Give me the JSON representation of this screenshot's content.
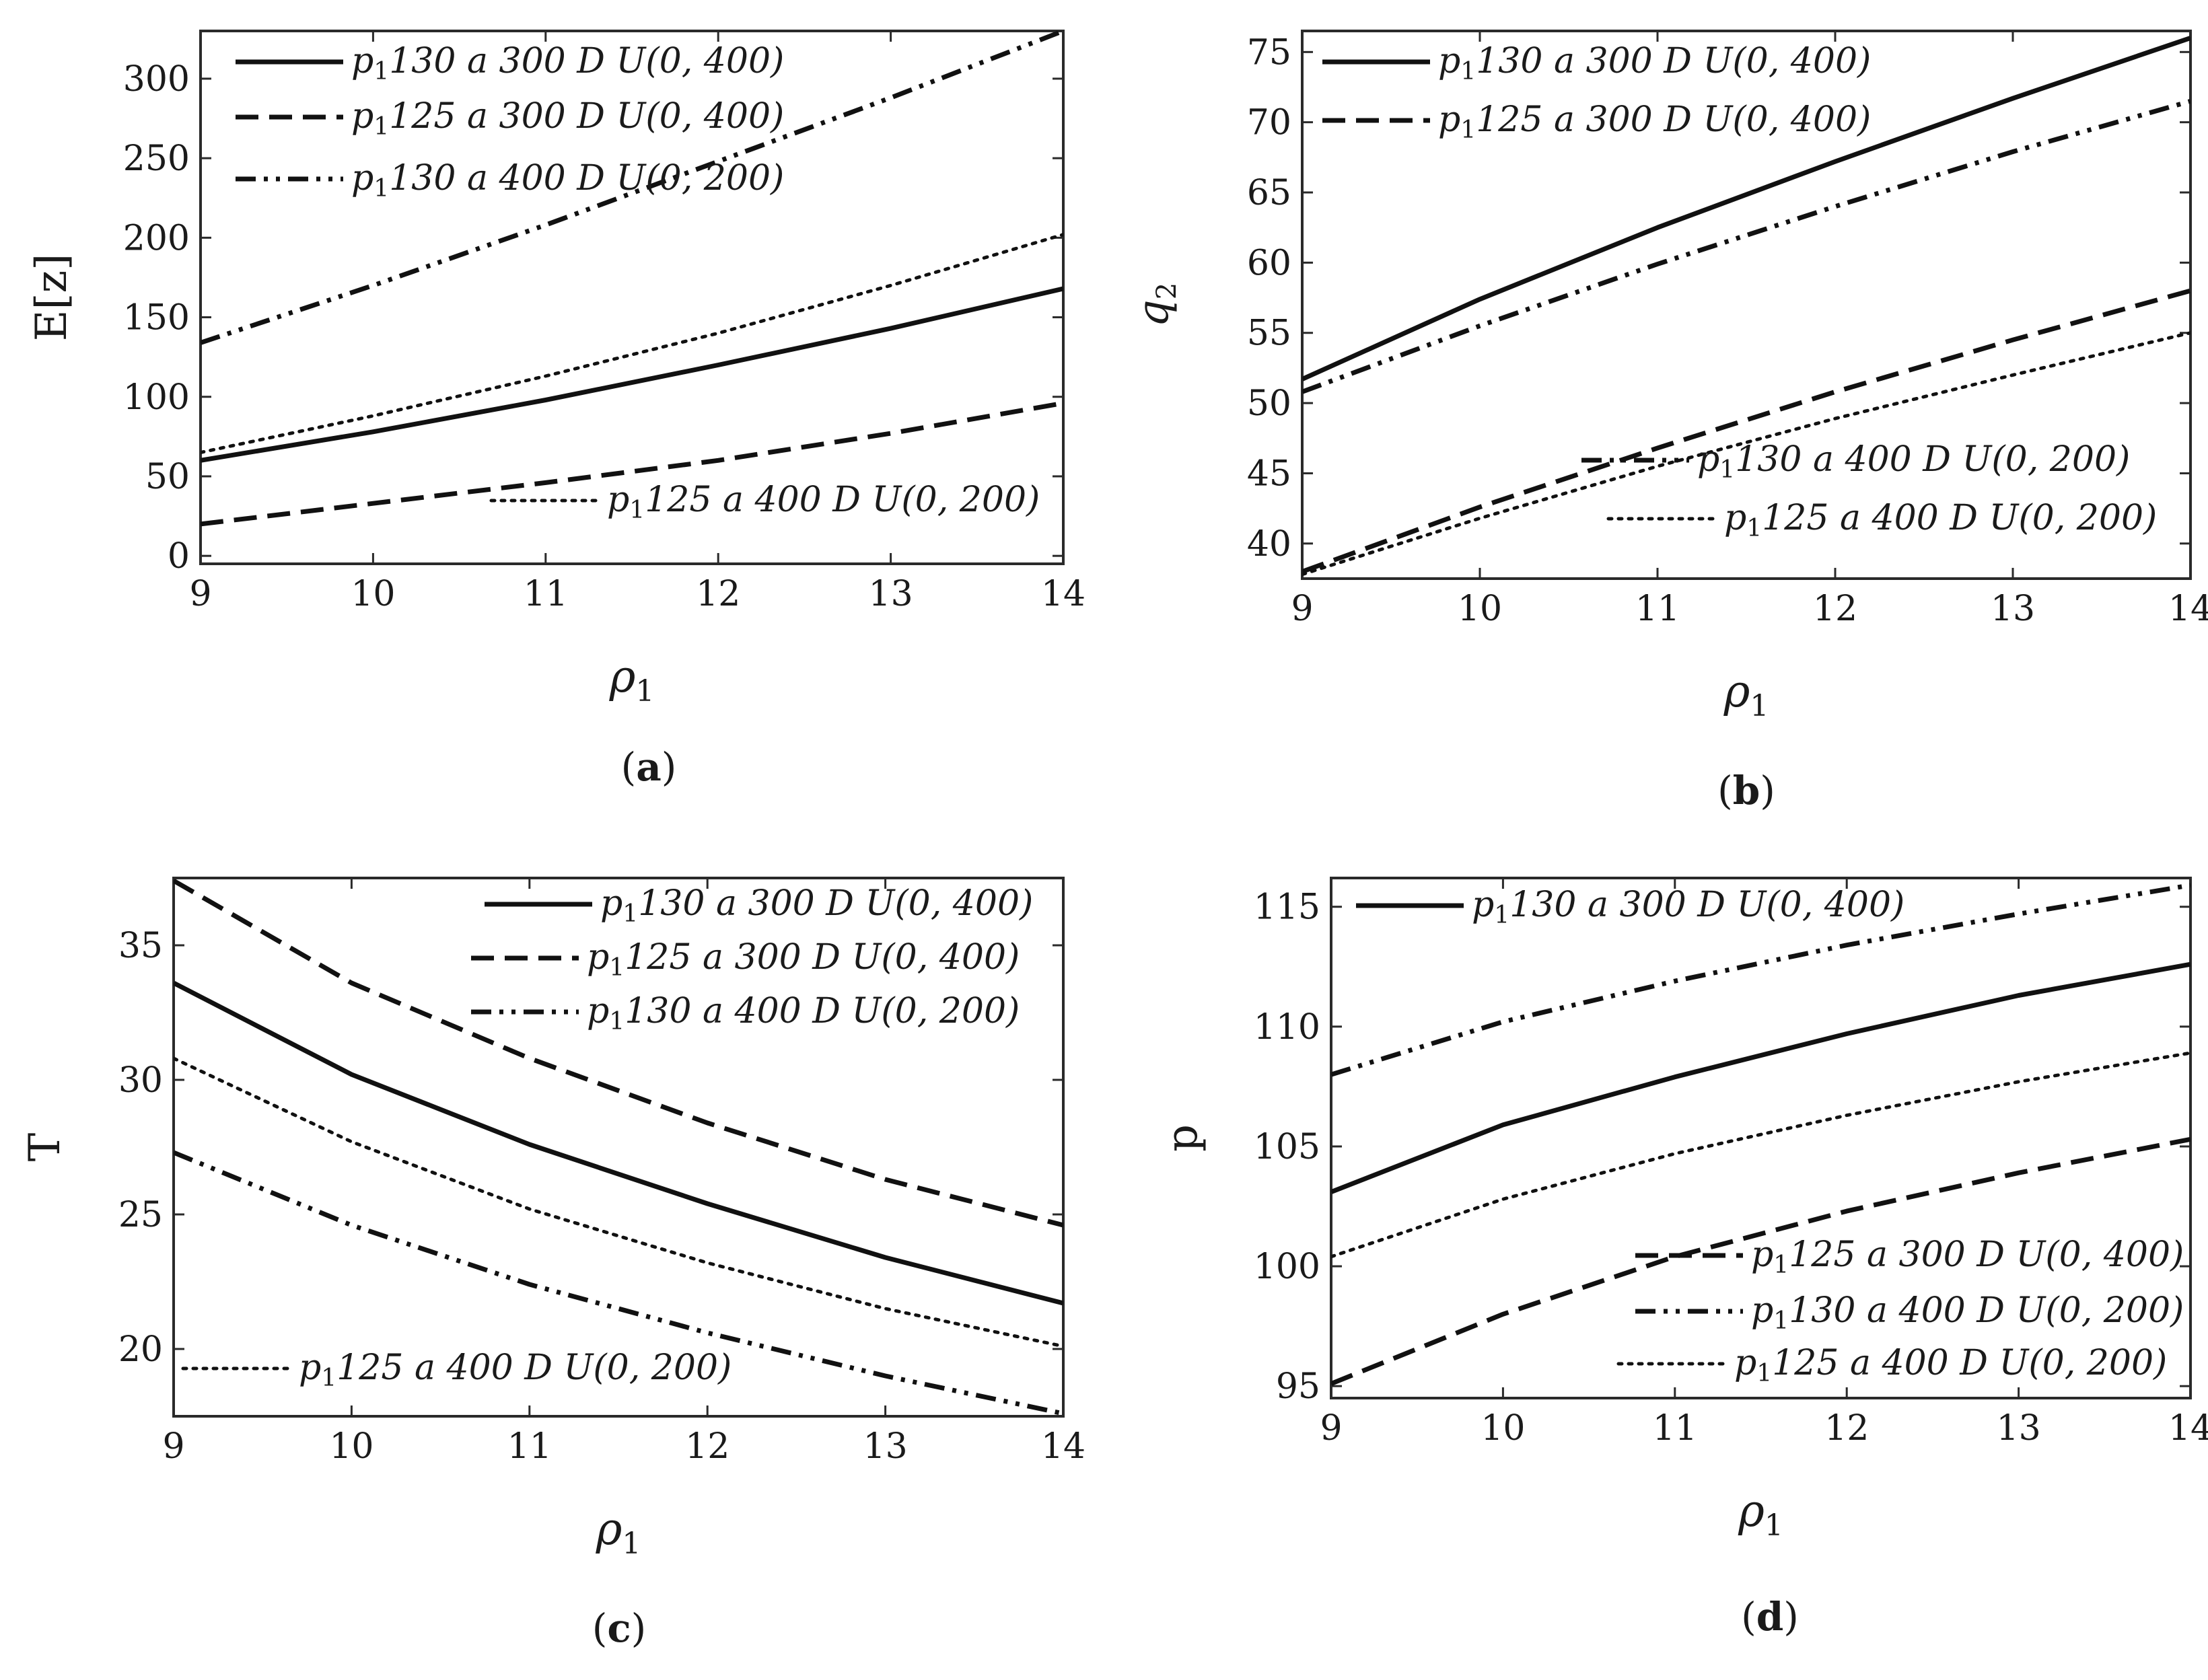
{
  "x_symbol": "ρ",
  "x_subscript": "1",
  "legend_prefix": "p",
  "legend_prefix_sub": "1",
  "legend_entries": [
    {
      "key": "s1",
      "text": "130 a 300 D U(0, 400)"
    },
    {
      "key": "s2",
      "text": "125 a 300 D U(0, 400)"
    },
    {
      "key": "s3",
      "text": "130 a 400 D U(0, 200)"
    },
    {
      "key": "s4",
      "text": "125 a 400 D U(0, 200)"
    }
  ],
  "chart_data": [
    {
      "type": "line",
      "panel": "a",
      "caption": "(a)",
      "ylabel": "E[z]",
      "ylabel_sub": "",
      "xlabel": "ρ1",
      "xlim": [
        9,
        14
      ],
      "ylim": [
        -5,
        330
      ],
      "xticks": [
        9,
        10,
        11,
        12,
        13,
        14
      ],
      "yticks": [
        0,
        50,
        100,
        150,
        200,
        250,
        300
      ],
      "series": [
        {
          "key": "s1",
          "name": "p1 130 a 300 D U(0, 400)",
          "style": "solid",
          "x": [
            9,
            10,
            11,
            12,
            13,
            14
          ],
          "y": [
            60,
            78,
            98,
            120,
            143,
            168
          ]
        },
        {
          "key": "s2",
          "name": "p1 125 a 300 D U(0, 400)",
          "style": "dashed",
          "x": [
            9,
            10,
            11,
            12,
            13,
            14
          ],
          "y": [
            20,
            33,
            46,
            60,
            77,
            96
          ]
        },
        {
          "key": "s3",
          "name": "p1 130 a 400 D U(0, 200)",
          "style": "dashdotdot",
          "x": [
            9,
            10,
            11,
            12,
            13,
            14
          ],
          "y": [
            134,
            170,
            208,
            248,
            288,
            330
          ]
        },
        {
          "key": "s4",
          "name": "p1 125 a 400 D U(0, 200)",
          "style": "dotted",
          "x": [
            9,
            10,
            11,
            12,
            13,
            14
          ],
          "y": [
            65,
            88,
            113,
            140,
            170,
            202
          ]
        }
      ]
    },
    {
      "type": "line",
      "panel": "b",
      "caption": "(b)",
      "ylabel": "q",
      "ylabel_sub": "2",
      "xlabel": "ρ1",
      "xlim": [
        9,
        14
      ],
      "ylim": [
        37.5,
        76.5
      ],
      "xticks": [
        9,
        10,
        11,
        12,
        13,
        14
      ],
      "yticks": [
        40,
        45,
        50,
        55,
        60,
        65,
        70,
        75
      ],
      "series": [
        {
          "key": "s1",
          "name": "p1 130 a 300 D U(0, 400)",
          "style": "solid",
          "x": [
            9,
            10,
            11,
            12,
            13,
            14
          ],
          "y": [
            51.7,
            57.4,
            62.5,
            67.2,
            71.7,
            76.0
          ]
        },
        {
          "key": "s2",
          "name": "p1 125 a 300 D U(0, 400)",
          "style": "dashed",
          "x": [
            9,
            10,
            11,
            12,
            13,
            14
          ],
          "y": [
            38.0,
            42.6,
            46.8,
            50.8,
            54.5,
            58.0
          ]
        },
        {
          "key": "s3",
          "name": "p1 130 a 400 D U(0, 200)",
          "style": "dashdotdot",
          "x": [
            9,
            10,
            11,
            12,
            13,
            14
          ],
          "y": [
            50.8,
            55.5,
            59.9,
            64.0,
            67.9,
            71.5
          ]
        },
        {
          "key": "s4",
          "name": "p1 125 a 400 D U(0, 200)",
          "style": "dotted",
          "x": [
            9,
            10,
            11,
            12,
            13,
            14
          ],
          "y": [
            37.8,
            41.8,
            45.5,
            48.9,
            52.0,
            55.0
          ]
        }
      ]
    },
    {
      "type": "line",
      "panel": "c",
      "caption": "(c)",
      "ylabel": "T",
      "ylabel_sub": "",
      "xlabel": "ρ1",
      "xlim": [
        9,
        14
      ],
      "ylim": [
        17.5,
        37.5
      ],
      "xticks": [
        9,
        10,
        11,
        12,
        13,
        14
      ],
      "yticks": [
        20,
        25,
        30,
        35
      ],
      "series": [
        {
          "key": "s1",
          "name": "p1 130 a 300 D U(0, 400)",
          "style": "solid",
          "x": [
            9,
            10,
            11,
            12,
            13,
            14
          ],
          "y": [
            33.6,
            30.2,
            27.6,
            25.4,
            23.4,
            21.7
          ]
        },
        {
          "key": "s2",
          "name": "p1 125 a 300 D U(0, 400)",
          "style": "dashed",
          "x": [
            9,
            10,
            11,
            12,
            13,
            14
          ],
          "y": [
            37.4,
            33.6,
            30.8,
            28.4,
            26.3,
            24.6
          ]
        },
        {
          "key": "s3",
          "name": "p1 130 a 400 D U(0, 200)",
          "style": "dashdotdot",
          "x": [
            9,
            10,
            11,
            12,
            13,
            14
          ],
          "y": [
            27.3,
            24.6,
            22.4,
            20.6,
            19.0,
            17.6
          ]
        },
        {
          "key": "s4",
          "name": "p1 125 a 400 D U(0, 200)",
          "style": "dotted",
          "x": [
            9,
            10,
            11,
            12,
            13,
            14
          ],
          "y": [
            30.8,
            27.7,
            25.2,
            23.2,
            21.5,
            20.1
          ]
        }
      ]
    },
    {
      "type": "line",
      "panel": "d",
      "caption": "(d)",
      "ylabel": "p",
      "ylabel_sub": "",
      "xlabel": "ρ1",
      "xlim": [
        9,
        14
      ],
      "ylim": [
        94.5,
        116.2
      ],
      "xticks": [
        9,
        10,
        11,
        12,
        13,
        14
      ],
      "yticks": [
        95,
        100,
        105,
        110,
        115
      ],
      "series": [
        {
          "key": "s1",
          "name": "p1 130 a 300 D U(0, 400)",
          "style": "solid",
          "x": [
            9,
            10,
            11,
            12,
            13,
            14
          ],
          "y": [
            103.1,
            105.9,
            107.9,
            109.7,
            111.3,
            112.6
          ]
        },
        {
          "key": "s2",
          "name": "p1 125 a 300 D U(0, 400)",
          "style": "dashed",
          "x": [
            9,
            10,
            11,
            12,
            13,
            14
          ],
          "y": [
            95.1,
            98.0,
            100.4,
            102.3,
            103.9,
            105.3
          ]
        },
        {
          "key": "s3",
          "name": "p1 130 a 400 D U(0, 200)",
          "style": "dashdotdot",
          "x": [
            9,
            10,
            11,
            12,
            13,
            14
          ],
          "y": [
            108.0,
            110.2,
            111.9,
            113.4,
            114.7,
            115.9
          ]
        },
        {
          "key": "s4",
          "name": "p1 125 a 400 D U(0, 200)",
          "style": "dotted",
          "x": [
            9,
            10,
            11,
            12,
            13,
            14
          ],
          "y": [
            100.4,
            102.8,
            104.7,
            106.3,
            107.7,
            108.9
          ]
        }
      ]
    }
  ]
}
